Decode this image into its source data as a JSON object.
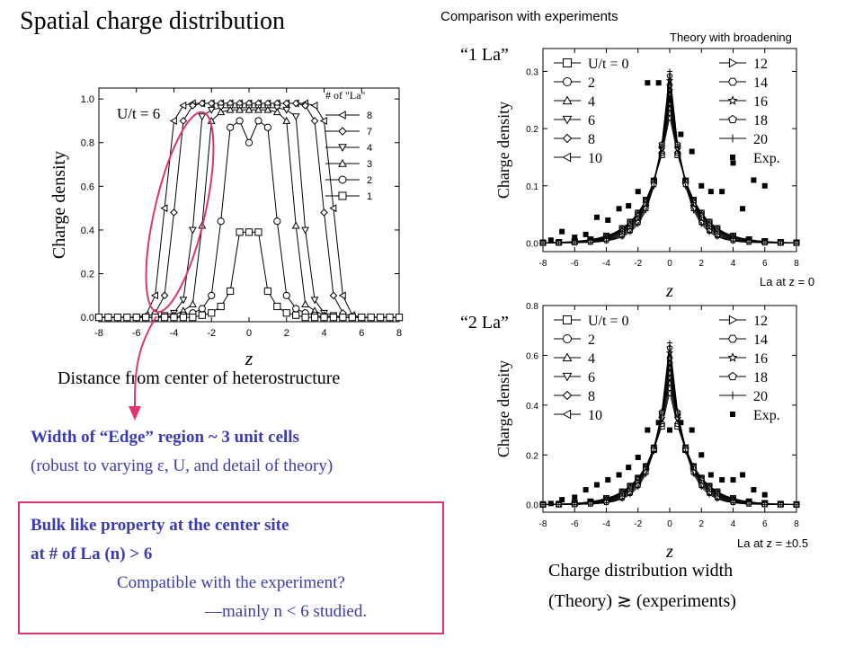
{
  "title": "Spatial charge distribution",
  "comparison_title": "Comparison with experiments",
  "theory_label": "Theory with broadening",
  "label_1la": "“1 La”",
  "label_2la": "“2 La”",
  "la_at_z0": "La at z = 0",
  "la_at_z05": "La at z = ±0.5",
  "distance_caption": "Distance from center of heterostructure",
  "edge_line1": "Width of “Edge” region ~ 3 unit cells",
  "edge_line2": "(robust to varying ε, U, and detail of theory)",
  "bulk_line1": "Bulk like property at the center site",
  "bulk_line2": "at # of La (n) > 6",
  "bulk_line3": "Compatible with the experiment?",
  "bulk_line4": "—mainly n < 6 studied.",
  "width_line1": "Charge distribution width",
  "width_line2": "(Theory) ≳ (experiments)",
  "colors": {
    "blue_text": "#3b3bb3",
    "pink": "#e0356b"
  },
  "chart_data": [
    {
      "type": "line",
      "title": "",
      "xlabel": "z",
      "ylabel": "Charge density",
      "annotation": "U/t = 6",
      "legend_title": "# of \"La\"",
      "xlim": [
        -8,
        8
      ],
      "ylim": [
        -0.02,
        1.05
      ],
      "xticks": [
        "-8",
        "-6",
        "-4",
        "-2",
        "0",
        "2",
        "4",
        "6",
        "8"
      ],
      "yticks": [
        "0.0",
        "0.2",
        "0.4",
        "0.6",
        "0.8",
        "1.0"
      ],
      "x": [
        -8,
        -7.5,
        -7,
        -6.5,
        -6,
        -5.5,
        -5,
        -4.5,
        -4,
        -3.5,
        -3,
        -2.5,
        -2,
        -1.5,
        -1,
        -0.5,
        0,
        0.5,
        1,
        1.5,
        2,
        2.5,
        3,
        3.5,
        4,
        4.5,
        5,
        5.5,
        6,
        6.5,
        7,
        7.5,
        8
      ],
      "series": [
        {
          "name": "8",
          "marker": "triangle-left",
          "values": [
            0,
            0,
            0,
            0,
            0,
            0.01,
            0.1,
            0.5,
            0.9,
            0.97,
            0.98,
            0.98,
            0.98,
            0.98,
            0.98,
            0.98,
            0.98,
            0.98,
            0.98,
            0.98,
            0.98,
            0.98,
            0.98,
            0.97,
            0.9,
            0.5,
            0.1,
            0.01,
            0,
            0,
            0,
            0,
            0
          ]
        },
        {
          "name": "7",
          "marker": "diamond",
          "values": [
            0,
            0,
            0,
            0,
            0,
            0,
            0.02,
            0.1,
            0.48,
            0.9,
            0.97,
            0.98,
            0.98,
            0.98,
            0.98,
            0.98,
            0.98,
            0.98,
            0.98,
            0.98,
            0.98,
            0.98,
            0.97,
            0.9,
            0.48,
            0.1,
            0.02,
            0,
            0,
            0,
            0,
            0,
            0
          ]
        },
        {
          "name": "4",
          "marker": "triangle-down",
          "values": [
            0,
            0,
            0,
            0,
            0,
            0,
            0,
            0.01,
            0.02,
            0.08,
            0.4,
            0.92,
            0.95,
            0.96,
            0.96,
            0.96,
            0.96,
            0.96,
            0.96,
            0.96,
            0.95,
            0.92,
            0.4,
            0.08,
            0.02,
            0.01,
            0,
            0,
            0,
            0,
            0,
            0,
            0
          ]
        },
        {
          "name": "3",
          "marker": "triangle-up",
          "values": [
            0,
            0,
            0,
            0,
            0,
            0,
            0,
            0,
            0.01,
            0.03,
            0.06,
            0.42,
            0.9,
            0.94,
            0.95,
            0.95,
            0.95,
            0.95,
            0.95,
            0.94,
            0.9,
            0.42,
            0.06,
            0.03,
            0.01,
            0,
            0,
            0,
            0,
            0,
            0,
            0,
            0
          ]
        },
        {
          "name": "2",
          "marker": "circle",
          "values": [
            0,
            0,
            0,
            0,
            0,
            0,
            0,
            0,
            0,
            0.01,
            0.02,
            0.04,
            0.1,
            0.44,
            0.87,
            0.9,
            0.8,
            0.9,
            0.87,
            0.44,
            0.1,
            0.04,
            0.02,
            0.01,
            0,
            0,
            0,
            0,
            0,
            0,
            0,
            0,
            0
          ]
        },
        {
          "name": "1",
          "marker": "square",
          "values": [
            0,
            0,
            0,
            0,
            0,
            0,
            0,
            0,
            0,
            0,
            0,
            0.01,
            0.02,
            0.05,
            0.12,
            0.39,
            0.39,
            0.39,
            0.12,
            0.05,
            0.02,
            0.01,
            0,
            0,
            0,
            0,
            0,
            0,
            0,
            0,
            0,
            0,
            0
          ]
        }
      ]
    },
    {
      "type": "line",
      "title": "",
      "xlabel": "z",
      "ylabel": "Charge density",
      "xlim": [
        -8,
        8
      ],
      "ylim": [
        -0.015,
        0.34
      ],
      "xticks": [
        "-8",
        "-6",
        "-4",
        "-2",
        "0",
        "2",
        "4",
        "6",
        "8"
      ],
      "yticks": [
        "0.0",
        "0.1",
        "0.2",
        "0.3"
      ],
      "legend": [
        "U/t = 0",
        "2",
        "4",
        "6",
        "8",
        "10",
        "12",
        "14",
        "16",
        "18",
        "20",
        "Exp."
      ],
      "theory_peak_min": 0.22,
      "theory_peak_max": 0.3,
      "experiment": {
        "name": "Exp.",
        "x": [
          -7.5,
          -6.8,
          -6,
          -5.3,
          -4.6,
          -3.9,
          -3.2,
          -2.6,
          -2,
          -1.4,
          -0.7,
          0,
          0.7,
          1.4,
          2,
          2.6,
          3.3,
          4,
          4.6,
          5.3,
          6
        ],
        "y": [
          0.005,
          0.02,
          0.01,
          0.015,
          0.045,
          0.04,
          0.06,
          0.065,
          0.09,
          0.28,
          0.28,
          0.25,
          0.19,
          0.16,
          0.1,
          0.09,
          0.09,
          0.14,
          0.06,
          0.11,
          0.1
        ]
      }
    },
    {
      "type": "line",
      "title": "",
      "xlabel": "z",
      "ylabel": "Charge density",
      "xlim": [
        -8,
        8
      ],
      "ylim": [
        -0.03,
        0.8
      ],
      "xticks": [
        "-8",
        "-6",
        "-4",
        "-2",
        "0",
        "2",
        "4",
        "6",
        "8"
      ],
      "yticks": [
        "0.0",
        "0.2",
        "0.4",
        "0.6",
        "0.8"
      ],
      "legend": [
        "U/t = 0",
        "2",
        "4",
        "6",
        "8",
        "10",
        "12",
        "14",
        "16",
        "18",
        "20",
        "Exp."
      ],
      "theory_peak_min": 0.45,
      "theory_peak_max": 0.65,
      "experiment": {
        "name": "Exp.",
        "x": [
          -7.5,
          -6.8,
          -6,
          -5.3,
          -4.6,
          -3.9,
          -3.2,
          -2.6,
          -2,
          -1.4,
          -0.7,
          0,
          0.7,
          1.4,
          2,
          2.6,
          3.3,
          4,
          4.6,
          5.3,
          6
        ],
        "y": [
          0.005,
          0.02,
          0.03,
          0.06,
          0.08,
          0.1,
          0.12,
          0.15,
          0.19,
          0.3,
          0.33,
          0.3,
          0.33,
          0.3,
          0.2,
          0.12,
          0.1,
          0.1,
          0.12,
          0.06,
          0.04
        ]
      }
    }
  ]
}
